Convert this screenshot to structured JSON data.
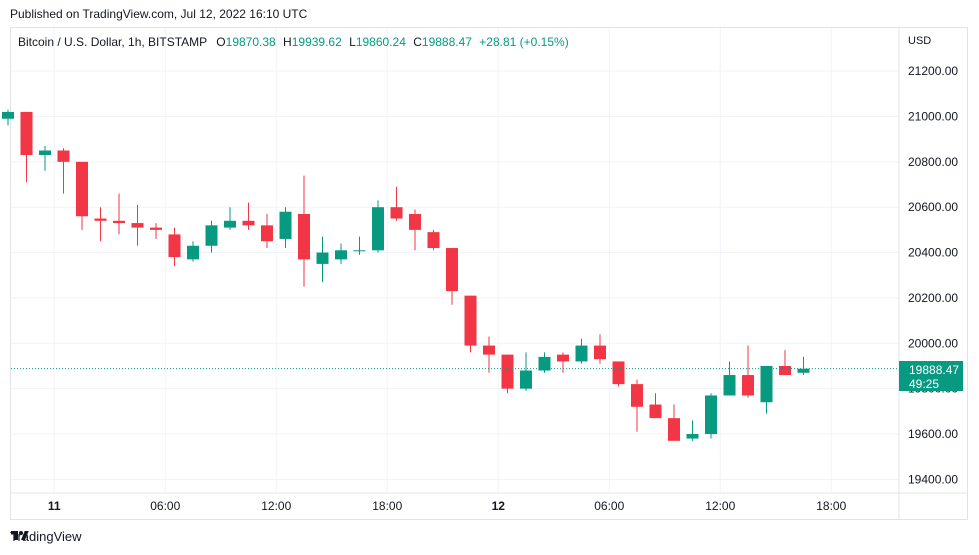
{
  "header": {
    "published": "Published on TradingView.com, Jul 12, 2022 16:10 UTC"
  },
  "legend": {
    "symbol": "Bitcoin / U.S. Dollar, 1h, BITSTAMP",
    "o_label": "O",
    "o_value": "19870.38",
    "h_label": "H",
    "h_value": "19939.62",
    "l_label": "L",
    "l_value": "19860.24",
    "c_label": "C",
    "c_value": "19888.47",
    "change": "+28.81 (+0.15%)"
  },
  "currency": "USD",
  "last_price": {
    "price": "19888.47",
    "countdown": "49:25",
    "value": 19888.47
  },
  "footer": {
    "brand": "TradingView"
  },
  "colors": {
    "up": "#089981",
    "down": "#f23645",
    "grid": "#f0f3fa",
    "text": "#131722"
  },
  "chart_data": {
    "type": "candlestick",
    "symbol": "BTC/USD",
    "interval": "1h",
    "exchange": "BITSTAMP",
    "ylim": [
      19340,
      21390
    ],
    "y_ticks": [
      "21200.00",
      "21000.00",
      "20800.00",
      "20600.00",
      "20400.00",
      "20200.00",
      "20000.00",
      "19800.00",
      "19600.00",
      "19400.00"
    ],
    "y_tick_values": [
      21200,
      21000,
      20800,
      20600,
      20400,
      20200,
      20000,
      19800,
      19600,
      19400
    ],
    "x_ticks": [
      {
        "label": "11",
        "bar": 2.5,
        "bold": true
      },
      {
        "label": "06:00",
        "bar": 8.5,
        "bold": false
      },
      {
        "label": "12:00",
        "bar": 14.5,
        "bold": false
      },
      {
        "label": "18:00",
        "bar": 20.5,
        "bold": false
      },
      {
        "label": "12",
        "bar": 26.5,
        "bold": true
      },
      {
        "label": "06:00",
        "bar": 32.5,
        "bold": false
      },
      {
        "label": "12:00",
        "bar": 38.5,
        "bold": false
      },
      {
        "label": "18:00",
        "bar": 44.5,
        "bold": false
      }
    ],
    "candles": [
      {
        "o": 20990,
        "h": 21030,
        "l": 20960,
        "c": 21020
      },
      {
        "o": 21020,
        "h": 21020,
        "l": 20710,
        "c": 20830
      },
      {
        "o": 20830,
        "h": 20870,
        "l": 20760,
        "c": 20850
      },
      {
        "o": 20850,
        "h": 20860,
        "l": 20660,
        "c": 20800
      },
      {
        "o": 20800,
        "h": 20800,
        "l": 20500,
        "c": 20560
      },
      {
        "o": 20550,
        "h": 20600,
        "l": 20450,
        "c": 20540
      },
      {
        "o": 20540,
        "h": 20660,
        "l": 20480,
        "c": 20530
      },
      {
        "o": 20530,
        "h": 20610,
        "l": 20430,
        "c": 20510
      },
      {
        "o": 20510,
        "h": 20530,
        "l": 20460,
        "c": 20500
      },
      {
        "o": 20480,
        "h": 20510,
        "l": 20340,
        "c": 20380
      },
      {
        "o": 20370,
        "h": 20450,
        "l": 20360,
        "c": 20430
      },
      {
        "o": 20430,
        "h": 20540,
        "l": 20400,
        "c": 20520
      },
      {
        "o": 20510,
        "h": 20600,
        "l": 20500,
        "c": 20540
      },
      {
        "o": 20540,
        "h": 20620,
        "l": 20500,
        "c": 20520
      },
      {
        "o": 20520,
        "h": 20570,
        "l": 20420,
        "c": 20450
      },
      {
        "o": 20460,
        "h": 20600,
        "l": 20420,
        "c": 20580
      },
      {
        "o": 20570,
        "h": 20740,
        "l": 20250,
        "c": 20370
      },
      {
        "o": 20350,
        "h": 20470,
        "l": 20270,
        "c": 20400
      },
      {
        "o": 20370,
        "h": 20440,
        "l": 20350,
        "c": 20410
      },
      {
        "o": 20410,
        "h": 20470,
        "l": 20390,
        "c": 20410
      },
      {
        "o": 20410,
        "h": 20630,
        "l": 20400,
        "c": 20600
      },
      {
        "o": 20600,
        "h": 20690,
        "l": 20540,
        "c": 20550
      },
      {
        "o": 20570,
        "h": 20590,
        "l": 20410,
        "c": 20500
      },
      {
        "o": 20490,
        "h": 20500,
        "l": 20410,
        "c": 20420
      },
      {
        "o": 20420,
        "h": 20420,
        "l": 20170,
        "c": 20230
      },
      {
        "o": 20210,
        "h": 20210,
        "l": 19960,
        "c": 19990
      },
      {
        "o": 19990,
        "h": 20030,
        "l": 19870,
        "c": 19950
      },
      {
        "o": 19950,
        "h": 19950,
        "l": 19780,
        "c": 19800
      },
      {
        "o": 19800,
        "h": 19960,
        "l": 19790,
        "c": 19880
      },
      {
        "o": 19880,
        "h": 19960,
        "l": 19870,
        "c": 19940
      },
      {
        "o": 19950,
        "h": 19960,
        "l": 19870,
        "c": 19920
      },
      {
        "o": 19920,
        "h": 20020,
        "l": 19910,
        "c": 19990
      },
      {
        "o": 19990,
        "h": 20040,
        "l": 19910,
        "c": 19930
      },
      {
        "o": 19920,
        "h": 19920,
        "l": 19810,
        "c": 19820
      },
      {
        "o": 19820,
        "h": 19840,
        "l": 19610,
        "c": 19720
      },
      {
        "o": 19730,
        "h": 19780,
        "l": 19680,
        "c": 19670
      },
      {
        "o": 19670,
        "h": 19730,
        "l": 19580,
        "c": 19570
      },
      {
        "o": 19580,
        "h": 19660,
        "l": 19570,
        "c": 19600
      },
      {
        "o": 19600,
        "h": 19780,
        "l": 19580,
        "c": 19770
      },
      {
        "o": 19770,
        "h": 19920,
        "l": 19770,
        "c": 19860
      },
      {
        "o": 19860,
        "h": 19990,
        "l": 19760,
        "c": 19770
      },
      {
        "o": 19740,
        "h": 19900,
        "l": 19690,
        "c": 19900
      },
      {
        "o": 19900,
        "h": 19970,
        "l": 19860,
        "c": 19860
      },
      {
        "o": 19870,
        "h": 19940,
        "l": 19860,
        "c": 19888
      }
    ]
  }
}
